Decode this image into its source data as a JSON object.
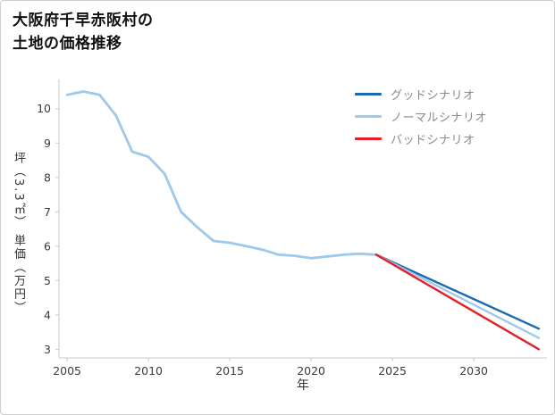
{
  "page": {
    "title_line1": "大阪府千早赤阪村の",
    "title_line2": "土地の価格推移"
  },
  "chart_data": {
    "type": "line",
    "title": "大阪府千早赤阪村の土地の価格推移",
    "xlabel": "年",
    "ylabel": "坪（3.3㎡） 単価（万円）",
    "xlim": [
      2004.5,
      2034.5
    ],
    "ylim": [
      2.75,
      10.85
    ],
    "xticks": [
      2005,
      2010,
      2015,
      2020,
      2025,
      2030
    ],
    "yticks": [
      3,
      4,
      5,
      6,
      7,
      8,
      9,
      10
    ],
    "grid": false,
    "legend_position": "top-right",
    "axis_color": "#c9c9c9",
    "tick_label_color": "#3a3a3a",
    "history": {
      "color": "#9cc9ee",
      "points": [
        [
          2005,
          10.4
        ],
        [
          2006,
          10.5
        ],
        [
          2007,
          10.4
        ],
        [
          2008,
          9.8
        ],
        [
          2009,
          8.75
        ],
        [
          2010,
          8.6
        ],
        [
          2011,
          8.1
        ],
        [
          2012,
          7.0
        ],
        [
          2013,
          6.55
        ],
        [
          2014,
          6.15
        ],
        [
          2015,
          6.1
        ],
        [
          2016,
          6.0
        ],
        [
          2017,
          5.9
        ],
        [
          2018,
          5.75
        ],
        [
          2019,
          5.72
        ],
        [
          2020,
          5.65
        ],
        [
          2021,
          5.7
        ],
        [
          2022,
          5.75
        ],
        [
          2023,
          5.78
        ],
        [
          2024,
          5.75
        ]
      ]
    },
    "series": [
      {
        "name": "グッドシナリオ",
        "color": "#1a6ab3",
        "points": [
          [
            2024,
            5.75
          ],
          [
            2034,
            3.6
          ]
        ]
      },
      {
        "name": "ノーマルシナリオ",
        "color": "#9cc9ee",
        "points": [
          [
            2024,
            5.75
          ],
          [
            2034,
            3.33
          ]
        ]
      },
      {
        "name": "バッドシナリオ",
        "color": "#ea1c24",
        "points": [
          [
            2024,
            5.75
          ],
          [
            2034,
            3.0
          ]
        ]
      }
    ]
  }
}
